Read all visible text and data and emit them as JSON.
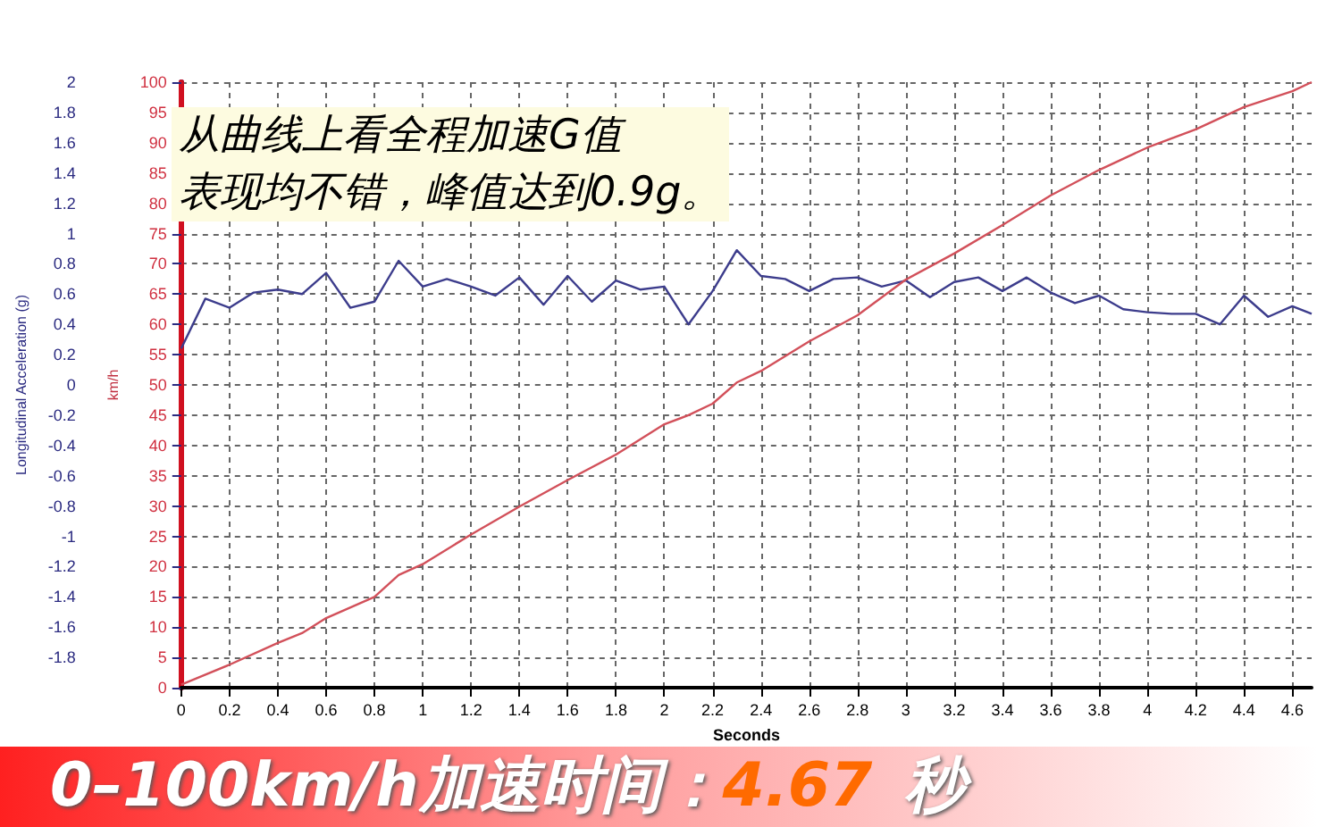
{
  "chart_data": {
    "type": "line",
    "xlabel": "Seconds",
    "ylabel": "Longitudinal Acceleration (g)",
    "y2label": "km/h",
    "annotations": [
      "从曲线上看全程加速G值",
      "表现均不错，峰值达到0.9g。",
      "0–100km/h加速时间：",
      "4.67",
      "秒"
    ],
    "xlim": [
      0,
      4.68
    ],
    "xticks": [
      0,
      0.2,
      0.4,
      0.6,
      0.8,
      1,
      1.2,
      1.4,
      1.6,
      1.8,
      2,
      2.2,
      2.4,
      2.6,
      2.8,
      3,
      3.2,
      3.4,
      3.6,
      3.8,
      4,
      4.2,
      4.4,
      4.6
    ],
    "ylim": [
      -2,
      2
    ],
    "yticks": [
      {
        "value": -2,
        "label": null
      },
      -1.8,
      -1.6,
      -1.4,
      -1.2,
      -1,
      -0.8,
      -0.6,
      -0.4,
      -0.2,
      0,
      0.2,
      0.4,
      0.6,
      0.8,
      1,
      1.2,
      1.4,
      1.6,
      1.8,
      2
    ],
    "y2lim": [
      0,
      100
    ],
    "y2ticks": [
      0,
      5,
      10,
      15,
      20,
      25,
      30,
      35,
      40,
      45,
      50,
      55,
      60,
      65,
      70,
      75,
      80,
      85,
      90,
      95,
      100
    ],
    "grid": true,
    "marker": "none",
    "line_style": "solid",
    "series": [
      {
        "color": "#3c3c8c",
        "x": [
          0,
          0.1,
          0.2,
          0.3,
          0.4,
          0.5,
          0.6,
          0.7,
          0.8,
          0.9,
          1,
          1.1,
          1.2,
          1.3,
          1.4,
          1.5,
          1.6,
          1.7,
          1.8,
          1.9,
          2,
          2.1,
          2.2,
          2.3,
          2.4,
          2.5,
          2.6,
          2.7,
          2.8,
          2.9,
          3,
          3.1,
          3.2,
          3.3,
          3.4,
          3.5,
          3.6,
          3.7,
          3.8,
          3.9,
          4,
          4.1,
          4.2,
          4.3,
          4.4,
          4.5,
          4.6,
          4.68
        ],
        "values": [
          0.24,
          0.57,
          0.51,
          0.61,
          0.63,
          0.6,
          0.74,
          0.51,
          0.55,
          0.82,
          0.65,
          0.7,
          0.65,
          0.59,
          0.71,
          0.53,
          0.72,
          0.55,
          0.69,
          0.63,
          0.65,
          0.4,
          0.62,
          0.89,
          0.72,
          0.7,
          0.62,
          0.7,
          0.71,
          0.65,
          0.69,
          0.58,
          0.68,
          0.71,
          0.62,
          0.71,
          0.61,
          0.54,
          0.59,
          0.5,
          0.48,
          0.47,
          0.47,
          0.4,
          0.59,
          0.45,
          0.52,
          0.47
        ]
      },
      {
        "color": "#d2505a",
        "axis": "y2",
        "x": [
          0,
          0.2,
          0.4,
          0.5,
          0.6,
          0.8,
          0.9,
          1,
          1.2,
          1.4,
          1.6,
          1.8,
          2,
          2.1,
          2.2,
          2.3,
          2.4,
          2.6,
          2.8,
          3,
          3.2,
          3.4,
          3.6,
          3.8,
          4,
          4.2,
          4.4,
          4.6,
          4.68
        ],
        "values": [
          0.5,
          3.8,
          7.4,
          9,
          11.5,
          15,
          18.6,
          20.4,
          25.3,
          29.9,
          34.3,
          38.5,
          43.5,
          45,
          46.9,
          50.4,
          52.3,
          57.2,
          61.5,
          67.4,
          71.7,
          76.4,
          81.3,
          85.5,
          89.2,
          92.2,
          95.9,
          98.5,
          100
        ]
      }
    ]
  }
}
